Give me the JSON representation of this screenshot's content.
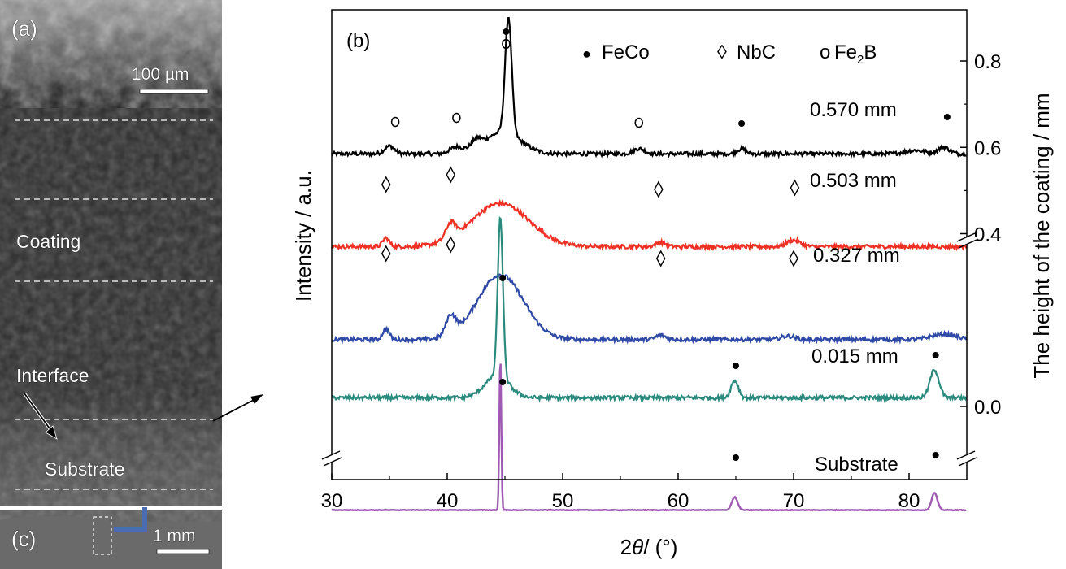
{
  "panels": {
    "a_label": "(a)",
    "b_label": "(b)",
    "c_label": "(c)",
    "a_scale_bar": "100 µm",
    "c_scale_bar": "1 mm",
    "coating_label": "Coating",
    "interface_label": "Interface",
    "substrate_label": "Substrate"
  },
  "chart_data": {
    "type": "line",
    "xlabel_prefix": "2",
    "xlabel_theta": "θ",
    "xlabel_suffix": "/ (°)",
    "ylabel": "Intensity / a.u.",
    "y2label": "The height of the coating / mm",
    "xlim": [
      30,
      85
    ],
    "xticks": [
      30,
      40,
      50,
      60,
      70,
      80
    ],
    "y2ticks": [
      "0.0",
      "0.4",
      "0.6",
      "0.8"
    ],
    "legend": [
      {
        "symbol": "●",
        "label": "FeCo"
      },
      {
        "symbol": "◊",
        "label": "NbC"
      },
      {
        "symbol": "o",
        "label": "Fe",
        "sub": "2",
        "tail": "B"
      }
    ],
    "colors": {
      "0.570 mm": "#000000",
      "0.503 mm": "#ee3124",
      "0.327 mm": "#2f4aa6",
      "0.015 mm": "#2b8a7e",
      "Substrate": "#a05ab4"
    },
    "series": [
      {
        "name": "0.570 mm",
        "base": 0.585,
        "peaks": [
          [
            35,
            0.018,
            0.6
          ],
          [
            40.8,
            0.015,
            0.8
          ],
          [
            42.5,
            0.02,
            0.6
          ],
          [
            45.3,
            0.27,
            0.4
          ],
          [
            44.8,
            0.05,
            2.2
          ],
          [
            56.6,
            0.012,
            0.7
          ],
          [
            65.5,
            0.012,
            0.5
          ],
          [
            80.5,
            0.008,
            1.2
          ],
          [
            83,
            0.015,
            0.7
          ]
        ]
      },
      {
        "name": "0.503 mm",
        "base": 0.37,
        "peaks": [
          [
            34.7,
            0.02,
            0.4
          ],
          [
            40.3,
            0.035,
            0.6
          ],
          [
            44.6,
            0.1,
            3.5
          ],
          [
            58.5,
            0.01,
            0.6
          ],
          [
            70,
            0.015,
            0.8
          ]
        ]
      },
      {
        "name": "0.327 mm",
        "base": 0.155,
        "peaks": [
          [
            34.7,
            0.025,
            0.4
          ],
          [
            40.3,
            0.045,
            0.6
          ],
          [
            44.6,
            0.15,
            2.8
          ],
          [
            58.5,
            0.01,
            0.6
          ],
          [
            69.5,
            0.008,
            0.8
          ],
          [
            83,
            0.012,
            1.5
          ]
        ]
      },
      {
        "name": "0.015 mm",
        "base": 0.02,
        "peaks": [
          [
            44.6,
            0.37,
            0.32
          ],
          [
            44.3,
            0.05,
            1.5
          ],
          [
            64.9,
            0.04,
            0.45
          ],
          [
            82.2,
            0.065,
            0.55
          ]
        ]
      },
      {
        "name": "Substrate",
        "base": -0.24,
        "peaks": [
          [
            44.6,
            0.36,
            0.12
          ],
          [
            64.9,
            0.03,
            0.35
          ],
          [
            82.2,
            0.04,
            0.35
          ]
        ]
      }
    ]
  }
}
